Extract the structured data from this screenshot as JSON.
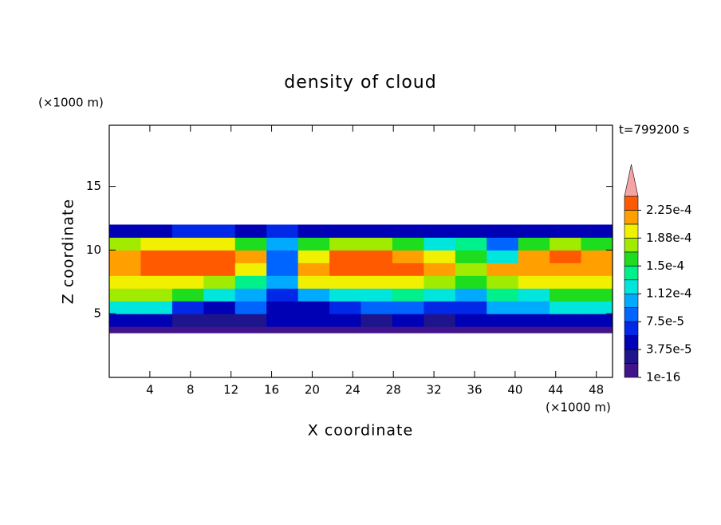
{
  "chart_data": {
    "type": "heatmap",
    "title": "density of cloud",
    "x_label": "X coordinate",
    "y_label": "Z coordinate",
    "x_unit": "(×1000 m)",
    "y_unit": "(×1000 m)",
    "time_label": "t=799200 s",
    "xlim": [
      0,
      49.6
    ],
    "ylim": [
      0,
      19.8
    ],
    "xticks": [
      4,
      8,
      12,
      16,
      20,
      24,
      28,
      32,
      36,
      40,
      44,
      48
    ],
    "yticks": [
      5,
      10,
      15
    ],
    "x_bins": [
      0,
      3.1,
      6.2,
      9.3,
      12.4,
      15.5,
      18.6,
      21.7,
      24.8,
      27.9,
      31,
      34.1,
      37.2,
      40.3,
      43.4,
      46.5,
      49.6
    ],
    "y_bins": [
      3.5,
      4,
      5,
      6,
      7,
      8,
      9,
      10,
      11,
      12
    ],
    "values": [
      [
        1e-05,
        1e-05,
        1e-05,
        1e-05,
        1e-05,
        1e-05,
        5e-06,
        1e-05,
        1e-05,
        1e-05,
        1e-05,
        1e-05,
        1e-05,
        1e-05,
        1e-05,
        1e-05
      ],
      [
        5e-05,
        4e-05,
        3e-05,
        3e-05,
        2e-05,
        4e-05,
        4e-05,
        5e-05,
        3e-05,
        4e-05,
        3e-05,
        5e-05,
        5e-05,
        4e-05,
        5e-05,
        5e-05
      ],
      [
        0.00013,
        0.00012,
        6e-05,
        5e-05,
        9e-05,
        4e-05,
        5e-05,
        7e-05,
        8e-05,
        9e-05,
        6e-05,
        6e-05,
        0.00011,
        0.0001,
        0.00012,
        0.00012
      ],
      [
        0.00017,
        0.00017,
        0.00015,
        0.00012,
        0.0001,
        6e-05,
        0.0001,
        0.00012,
        0.00013,
        0.00014,
        0.00013,
        0.00011,
        0.00014,
        0.00013,
        0.00015,
        0.00016
      ],
      [
        0.0002,
        0.0002,
        0.00019,
        0.00018,
        0.00014,
        0.0001,
        0.00019,
        0.0002,
        0.0002,
        0.00019,
        0.00017,
        0.00016,
        0.00018,
        0.00019,
        0.0002,
        0.0002
      ],
      [
        0.00022,
        0.00023,
        0.00023,
        0.00023,
        0.0002,
        8e-05,
        0.00022,
        0.00023,
        0.00023,
        0.00023,
        0.00021,
        0.00018,
        0.00021,
        0.00022,
        0.00022,
        0.00022
      ],
      [
        0.00021,
        0.00023,
        0.00023,
        0.00023,
        0.00021,
        9e-05,
        0.0002,
        0.00023,
        0.00023,
        0.00022,
        0.00019,
        0.00015,
        0.00012,
        0.00021,
        0.00023,
        0.00021
      ],
      [
        0.00018,
        0.00019,
        0.0002,
        0.00019,
        0.00016,
        0.0001,
        0.00015,
        0.00018,
        0.00018,
        0.00016,
        0.00013,
        0.00014,
        8e-05,
        0.00015,
        0.00017,
        0.00015
      ],
      [
        5e-05,
        5e-05,
        6e-05,
        6e-05,
        5e-05,
        6e-05,
        5e-05,
        5e-05,
        5e-05,
        5e-05,
        5e-05,
        5e-05,
        5e-05,
        5e-05,
        5e-05,
        5e-05
      ]
    ],
    "levels": [
      1e-16,
      1.875e-05,
      3.75e-05,
      5.625e-05,
      7.5e-05,
      9.375e-05,
      0.0001125,
      0.00013125,
      0.00015,
      0.00016875,
      0.0001875,
      0.00020625,
      0.000225,
      0.00024375
    ],
    "colors": [
      "#41148c",
      "#1e148c",
      "#0000b4",
      "#0028e6",
      "#0064ff",
      "#00aaff",
      "#00e6dc",
      "#00f08c",
      "#1edc1e",
      "#a0eb00",
      "#f0f000",
      "#ffa000",
      "#ff5a00"
    ],
    "extend_color": "#f4a4a4",
    "colorbar_ticks": [
      {
        "value": 1e-16,
        "label": "1e-16"
      },
      {
        "value": 3.75e-05,
        "label": "3.75e-5"
      },
      {
        "value": 7.5e-05,
        "label": "7.5e-5"
      },
      {
        "value": 0.0001125,
        "label": "1.12e-4"
      },
      {
        "value": 0.00015,
        "label": "1.5e-4"
      },
      {
        "value": 0.0001875,
        "label": "1.88e-4"
      },
      {
        "value": 0.000225,
        "label": "2.25e-4"
      }
    ]
  }
}
